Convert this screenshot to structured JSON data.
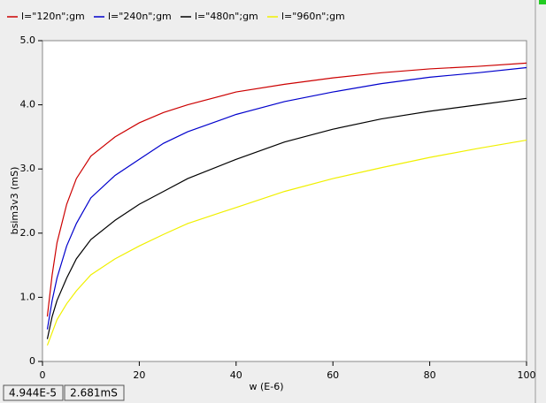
{
  "chart_data": {
    "type": "line",
    "x_label": "w (E-6)",
    "y_label": "bsim3v3 (mS)",
    "x": [
      1,
      2,
      3,
      5,
      7,
      10,
      15,
      20,
      25,
      30,
      40,
      50,
      60,
      70,
      80,
      90,
      100
    ],
    "series": [
      {
        "name": "l=\"120n\";gm",
        "color": "#cc0000",
        "values": [
          0.7,
          1.35,
          1.85,
          2.45,
          2.85,
          3.2,
          3.5,
          3.72,
          3.88,
          4.0,
          4.2,
          4.32,
          4.42,
          4.5,
          4.56,
          4.6,
          4.65
        ]
      },
      {
        "name": "l=\"240n\";gm",
        "color": "#0000cc",
        "values": [
          0.5,
          0.95,
          1.3,
          1.8,
          2.15,
          2.55,
          2.9,
          3.15,
          3.4,
          3.58,
          3.85,
          4.05,
          4.2,
          4.33,
          4.43,
          4.5,
          4.58
        ]
      },
      {
        "name": "l=\"480n\";gm",
        "color": "#000000",
        "values": [
          0.35,
          0.7,
          0.95,
          1.3,
          1.6,
          1.9,
          2.2,
          2.45,
          2.65,
          2.85,
          3.15,
          3.42,
          3.62,
          3.78,
          3.9,
          4.0,
          4.1
        ]
      },
      {
        "name": "l=\"960n\";gm",
        "color": "#f0f000",
        "values": [
          0.25,
          0.45,
          0.65,
          0.9,
          1.1,
          1.35,
          1.6,
          1.8,
          1.98,
          2.15,
          2.4,
          2.65,
          2.85,
          3.02,
          3.18,
          3.32,
          3.45
        ]
      }
    ],
    "xlim": [
      0,
      100
    ],
    "xticks": [
      0,
      20,
      40,
      60,
      80,
      100
    ],
    "ylim": [
      0,
      5
    ],
    "yticks": [
      0,
      {
        "value": 1,
        "label": "1.0"
      },
      {
        "value": 2,
        "label": "2.0"
      },
      {
        "value": 3,
        "label": "3.0"
      },
      {
        "value": 4,
        "label": "4.0"
      },
      {
        "value": 5,
        "label": "5.0"
      }
    ],
    "grid": false,
    "legend": "top"
  },
  "status": [
    "4.944E-5",
    "2.681mS"
  ]
}
